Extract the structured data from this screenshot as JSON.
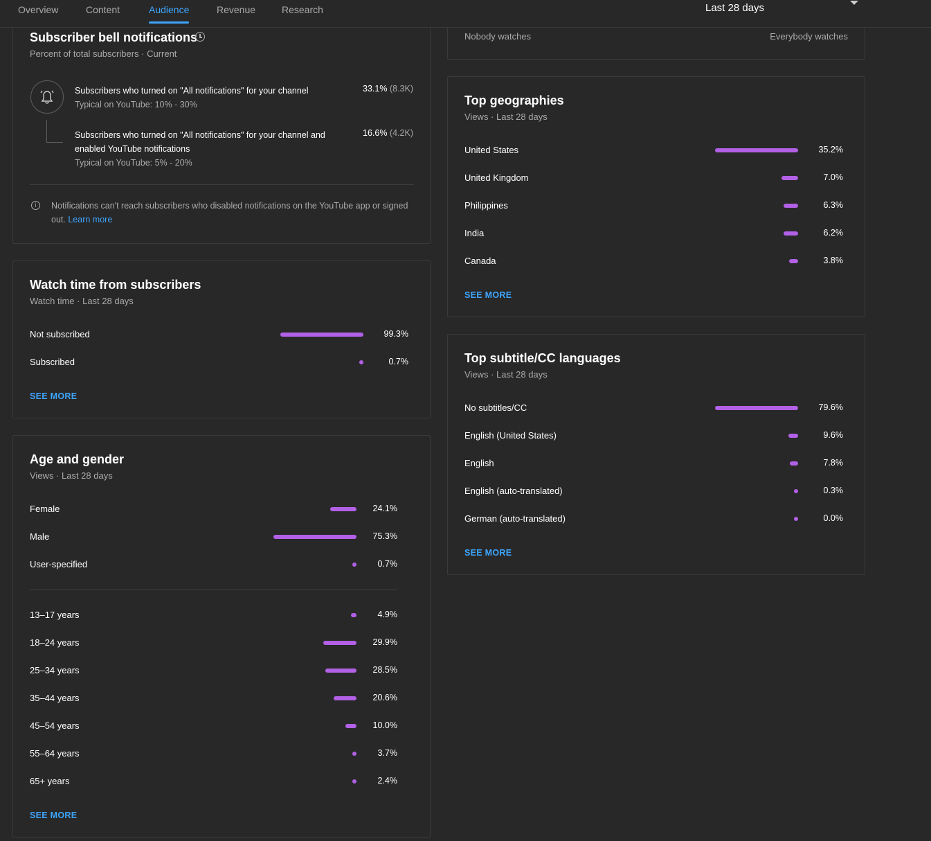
{
  "nav": {
    "tabs": [
      {
        "label": "Overview"
      },
      {
        "label": "Content"
      },
      {
        "label": "Audience"
      },
      {
        "label": "Revenue"
      },
      {
        "label": "Research"
      }
    ],
    "active_tab": "Audience",
    "period": "Last 28 days"
  },
  "watch_scale": {
    "left_label": "Nobody watches",
    "right_label": "Everybody watches"
  },
  "bell": {
    "title": "Subscriber bell notifications",
    "subtitle": "Percent of total subscribers · Current",
    "row1_text": "Subscribers who turned on \"All notifications\" for your channel",
    "row1_typical": "Typical on YouTube: 10% - 30%",
    "row1_pct": "33.1%",
    "row1_count": "(8.3K)",
    "row2_text": "Subscribers who turned on \"All notifications\" for your channel and enabled YouTube notifications",
    "row2_typical": "Typical on YouTube: 5% - 20%",
    "row2_pct": "16.6%",
    "row2_count": "(4.2K)",
    "note": "Notifications can't reach subscribers who disabled notifications on the YouTube app or signed out.",
    "learn_more": "Learn more"
  },
  "watch_subs": {
    "title": "Watch time from subscribers",
    "subtitle": "Watch time · Last 28 days",
    "rows": [
      {
        "label": "Not subscribed",
        "value": "99.3%",
        "pct": 99.3
      },
      {
        "label": "Subscribed",
        "value": "0.7%",
        "pct": 0.7
      }
    ],
    "see_more": "SEE MORE"
  },
  "age_gender": {
    "title": "Age and gender",
    "subtitle": "Views · Last 28 days",
    "gender_rows": [
      {
        "label": "Female",
        "value": "24.1%",
        "pct": 24.1
      },
      {
        "label": "Male",
        "value": "75.3%",
        "pct": 75.3
      },
      {
        "label": "User-specified",
        "value": "0.7%",
        "pct": 0.7
      }
    ],
    "age_rows": [
      {
        "label": "13–17 years",
        "value": "4.9%",
        "pct": 4.9
      },
      {
        "label": "18–24 years",
        "value": "29.9%",
        "pct": 29.9
      },
      {
        "label": "25–34 years",
        "value": "28.5%",
        "pct": 28.5
      },
      {
        "label": "35–44 years",
        "value": "20.6%",
        "pct": 20.6
      },
      {
        "label": "45–54 years",
        "value": "10.0%",
        "pct": 10.0
      },
      {
        "label": "55–64 years",
        "value": "3.7%",
        "pct": 3.7
      },
      {
        "label": "65+ years",
        "value": "2.4%",
        "pct": 2.4
      }
    ],
    "see_more": "SEE MORE"
  },
  "geographies": {
    "title": "Top geographies",
    "subtitle": "Views · Last 28 days",
    "rows": [
      {
        "label": "United States",
        "value": "35.2%",
        "pct": 35.2
      },
      {
        "label": "United Kingdom",
        "value": "7.0%",
        "pct": 7.0
      },
      {
        "label": "Philippines",
        "value": "6.3%",
        "pct": 6.3
      },
      {
        "label": "India",
        "value": "6.2%",
        "pct": 6.2
      },
      {
        "label": "Canada",
        "value": "3.8%",
        "pct": 3.8
      }
    ],
    "see_more": "SEE MORE"
  },
  "subtitles": {
    "title": "Top subtitle/CC languages",
    "subtitle": "Views · Last 28 days",
    "rows": [
      {
        "label": "No subtitles/CC",
        "value": "79.6%",
        "pct": 79.6
      },
      {
        "label": "English (United States)",
        "value": "9.6%",
        "pct": 9.6
      },
      {
        "label": "English",
        "value": "7.8%",
        "pct": 7.8
      },
      {
        "label": "English (auto-translated)",
        "value": "0.3%",
        "pct": 0.3
      },
      {
        "label": "German (auto-translated)",
        "value": "0.0%",
        "pct": 0.0
      }
    ],
    "see_more": "SEE MORE"
  },
  "colors": {
    "bar": "#b260e6",
    "accent": "#3ea6ff",
    "background": "#282828"
  }
}
